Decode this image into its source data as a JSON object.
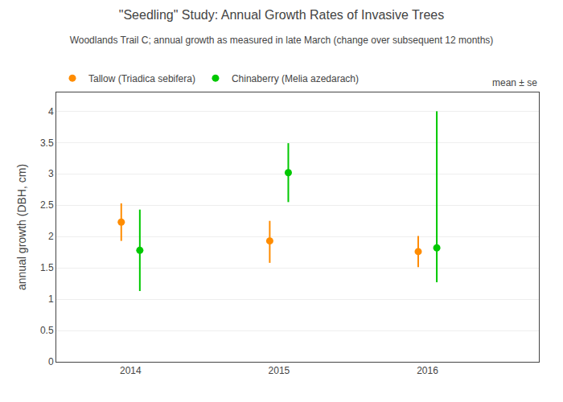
{
  "chart_data": {
    "type": "scatter",
    "title": "\"Seedling\" Study: Annual Growth Rates of Invasive Trees",
    "subtitle": "Woodlands Trail C; annual growth as measured in late March (change over subsequent 12 months)",
    "ylabel": "annual growth (DBH, cm)",
    "x": [
      2014,
      2015,
      2016
    ],
    "xlim": [
      2013.5,
      2016.75
    ],
    "xticks": [
      2014,
      2015,
      2016
    ],
    "ylim": [
      0,
      4.3
    ],
    "yticks": [
      0,
      0.5,
      1,
      1.5,
      2,
      2.5,
      3,
      3.5,
      4
    ],
    "grid": true,
    "legend": "top",
    "marker": "circle",
    "annotations": [
      "mean ± se"
    ],
    "series": [
      {
        "name": "Tallow (Triadica sebifera)",
        "color": "#ff8c00",
        "values": [
          2.23,
          1.93,
          1.76
        ],
        "yerr_upper": [
          0.3,
          0.32,
          0.25
        ],
        "yerr_lower": [
          0.3,
          0.35,
          0.25
        ]
      },
      {
        "name": "Chinaberry (Melia azedarach)",
        "color": "#00c800",
        "values": [
          1.78,
          3.02,
          1.82
        ],
        "yerr_upper": [
          0.65,
          0.47,
          2.18
        ],
        "yerr_lower": [
          0.65,
          0.47,
          0.55
        ]
      }
    ]
  }
}
